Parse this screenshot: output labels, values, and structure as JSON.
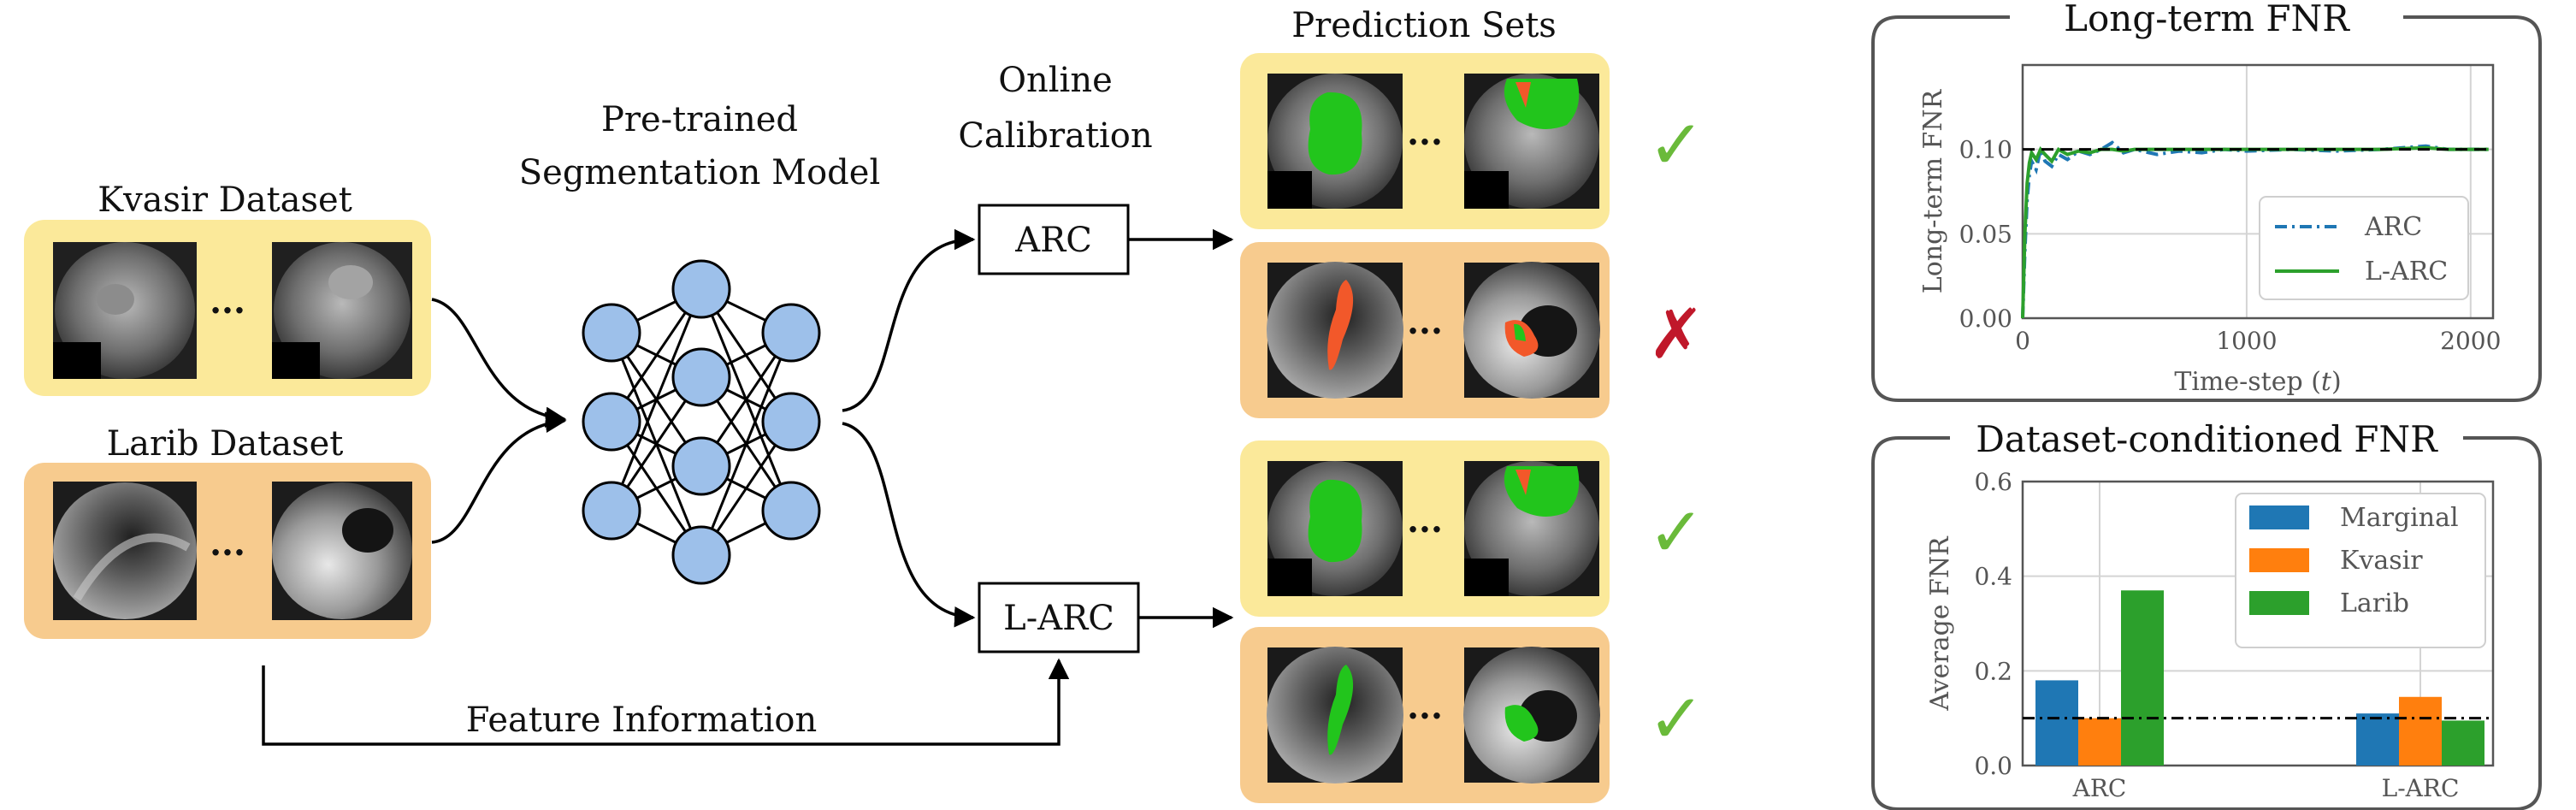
{
  "diagram": {
    "datasets": [
      {
        "label": "Kvasir Dataset",
        "ellipsis": "···"
      },
      {
        "label": "Larib Dataset",
        "ellipsis": "···"
      }
    ],
    "model_label_line1": "Pre-trained",
    "model_label_line2": "Segmentation Model",
    "calibration_label_line1": "Online",
    "calibration_label_line2": "Calibration",
    "methods": [
      "ARC",
      "L-ARC"
    ],
    "prediction_sets_label": "Prediction Sets",
    "feature_information_label": "Feature Information",
    "outcomes": [
      {
        "method": "ARC",
        "dataset": "Kvasir",
        "result": "✓",
        "color": "#6aba3a"
      },
      {
        "method": "ARC",
        "dataset": "Larib",
        "result": "✗",
        "color": "#c0182a"
      },
      {
        "method": "L-ARC",
        "dataset": "Kvasir",
        "result": "✓",
        "color": "#6aba3a"
      },
      {
        "method": "L-ARC",
        "dataset": "Larib",
        "result": "✓",
        "color": "#6aba3a"
      }
    ],
    "colors": {
      "kvasir_panel": "#fbe99a",
      "larib_panel": "#f7cb8e",
      "neuron_fill": "#9dc0ea",
      "prediction_arc": "#f2582a",
      "prediction_green": "#22c51c"
    }
  },
  "chart_data": [
    {
      "type": "line",
      "title": "Long-term FNR",
      "xlabel": "Time-step (t)",
      "ylabel": "Long-term FNR",
      "xlim": [
        0,
        2100
      ],
      "ylim": [
        0,
        0.15
      ],
      "xticks": [
        "0",
        "1000",
        "2000"
      ],
      "yticks": [
        "0.00",
        "0.05",
        "0.10"
      ],
      "target": 0.1,
      "grid": true,
      "legend_position": "lower-right",
      "series": [
        {
          "name": "ARC",
          "style": "dash-dot",
          "color": "#1f77b4",
          "x": [
            0,
            10,
            20,
            30,
            40,
            60,
            80,
            100,
            130,
            160,
            200,
            250,
            300,
            350,
            400,
            450,
            500,
            600,
            700,
            800,
            900,
            1000,
            1200,
            1400,
            1600,
            1800,
            1900,
            2000,
            2080
          ],
          "y": [
            0.0,
            0.04,
            0.07,
            0.085,
            0.093,
            0.088,
            0.1,
            0.093,
            0.09,
            0.097,
            0.094,
            0.099,
            0.097,
            0.1,
            0.104,
            0.098,
            0.1,
            0.097,
            0.099,
            0.098,
            0.1,
            0.099,
            0.1,
            0.099,
            0.1,
            0.102,
            0.1,
            0.1,
            0.1
          ]
        },
        {
          "name": "L-ARC",
          "style": "solid",
          "color": "#2ca02c",
          "x": [
            0,
            10,
            20,
            30,
            40,
            60,
            80,
            100,
            130,
            160,
            200,
            250,
            300,
            350,
            400,
            450,
            500,
            600,
            700,
            800,
            900,
            1000,
            1200,
            1400,
            1600,
            1800,
            1900,
            2000,
            2080
          ],
          "y": [
            0.0,
            0.05,
            0.08,
            0.092,
            0.098,
            0.094,
            0.1,
            0.097,
            0.093,
            0.1,
            0.097,
            0.099,
            0.098,
            0.1,
            0.1,
            0.099,
            0.1,
            0.1,
            0.1,
            0.1,
            0.1,
            0.1,
            0.1,
            0.1,
            0.1,
            0.101,
            0.1,
            0.1,
            0.1
          ]
        }
      ]
    },
    {
      "type": "bar",
      "title": "Dataset-conditioned FNR",
      "xlabel": "",
      "ylabel": "Average FNR",
      "ylim": [
        0,
        0.6
      ],
      "yticks": [
        "0.0",
        "0.2",
        "0.4",
        "0.6"
      ],
      "categories": [
        "ARC",
        "L-ARC"
      ],
      "target": 0.1,
      "grid": true,
      "legend_position": "upper-right",
      "series": [
        {
          "name": "Marginal",
          "color": "#1f77b4",
          "values": [
            0.18,
            0.11
          ]
        },
        {
          "name": "Kvasir",
          "color": "#ff7f0e",
          "values": [
            0.1,
            0.145
          ]
        },
        {
          "name": "Larib",
          "color": "#2ca02c",
          "values": [
            0.37,
            0.095
          ]
        }
      ]
    }
  ]
}
